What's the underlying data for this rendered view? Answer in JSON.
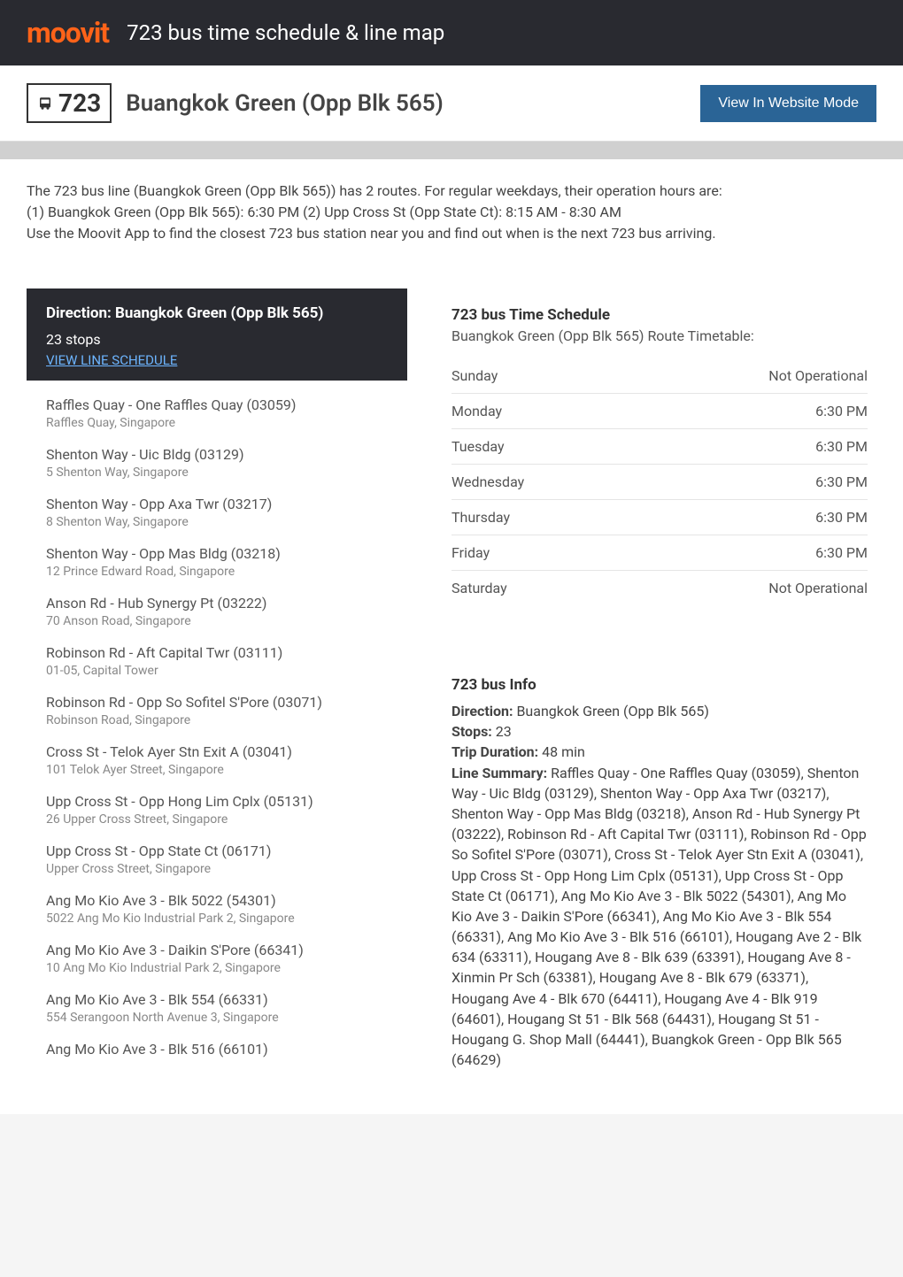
{
  "header": {
    "logo": "moovit",
    "logo_color": "#ff6319",
    "title": "723 bus time schedule & line map",
    "bg_color": "#292a30"
  },
  "subheader": {
    "route_number": "723",
    "route_name": "Buangkok Green (Opp Blk 565)",
    "website_btn": "View In Website Mode",
    "btn_bg": "#2a6496"
  },
  "intro": {
    "line1": "The 723 bus line (Buangkok Green (Opp Blk 565)) has 2 routes. For regular weekdays, their operation hours are:",
    "line2": "(1) Buangkok Green (Opp Blk 565): 6:30 PM (2) Upp Cross St (Opp State Ct): 8:15 AM - 8:30 AM",
    "line3": "Use the Moovit App to find the closest 723 bus station near you and find out when is the next 723 bus arriving."
  },
  "direction": {
    "title": "Direction: Buangkok Green (Opp Blk 565)",
    "stops_count": "23 stops",
    "schedule_link": "VIEW LINE SCHEDULE",
    "link_color": "#6db5ff",
    "bg_color": "#292a30"
  },
  "stops": [
    {
      "name": "Raffles Quay - One Raffles Quay (03059)",
      "address": "Raffles Quay, Singapore"
    },
    {
      "name": "Shenton Way - Uic Bldg (03129)",
      "address": "5 Shenton Way, Singapore"
    },
    {
      "name": "Shenton Way - Opp Axa Twr (03217)",
      "address": "8 Shenton Way, Singapore"
    },
    {
      "name": "Shenton Way - Opp Mas Bldg (03218)",
      "address": "12 Prince Edward Road, Singapore"
    },
    {
      "name": "Anson Rd - Hub Synergy Pt (03222)",
      "address": "70 Anson Road, Singapore"
    },
    {
      "name": "Robinson Rd - Aft Capital Twr (03111)",
      "address": "01-05, Capital Tower"
    },
    {
      "name": "Robinson Rd - Opp So Sofitel S'Pore (03071)",
      "address": "Robinson Road, Singapore"
    },
    {
      "name": "Cross St - Telok Ayer Stn Exit A (03041)",
      "address": "101 Telok Ayer Street, Singapore"
    },
    {
      "name": "Upp Cross St - Opp Hong Lim Cplx (05131)",
      "address": "26 Upper Cross Street, Singapore"
    },
    {
      "name": "Upp Cross St - Opp State Ct (06171)",
      "address": "Upper Cross Street, Singapore"
    },
    {
      "name": "Ang Mo Kio Ave 3 - Blk 5022 (54301)",
      "address": "5022 Ang Mo Kio Industrial Park 2, Singapore"
    },
    {
      "name": "Ang Mo Kio Ave 3 - Daikin S'Pore (66341)",
      "address": "10 Ang Mo Kio Industrial Park 2, Singapore"
    },
    {
      "name": "Ang Mo Kio Ave 3 - Blk 554 (66331)",
      "address": "554 Serangoon North Avenue 3, Singapore"
    },
    {
      "name": "Ang Mo Kio Ave 3 - Blk 516 (66101)",
      "address": ""
    }
  ],
  "schedule": {
    "title": "723 bus Time Schedule",
    "subtitle": "Buangkok Green (Opp Blk 565) Route Timetable:",
    "rows": [
      {
        "day": "Sunday",
        "time": "Not Operational"
      },
      {
        "day": "Monday",
        "time": "6:30 PM"
      },
      {
        "day": "Tuesday",
        "time": "6:30 PM"
      },
      {
        "day": "Wednesday",
        "time": "6:30 PM"
      },
      {
        "day": "Thursday",
        "time": "6:30 PM"
      },
      {
        "day": "Friday",
        "time": "6:30 PM"
      },
      {
        "day": "Saturday",
        "time": "Not Operational"
      }
    ]
  },
  "info": {
    "title": "723 bus Info",
    "direction_label": "Direction:",
    "direction_value": " Buangkok Green (Opp Blk 565)",
    "stops_label": "Stops:",
    "stops_value": " 23",
    "duration_label": "Trip Duration:",
    "duration_value": " 48 min",
    "summary_label": "Line Summary:",
    "summary_value": " Raffles Quay - One Raffles Quay (03059), Shenton Way - Uic Bldg (03129), Shenton Way - Opp Axa Twr (03217), Shenton Way - Opp Mas Bldg (03218), Anson Rd - Hub Synergy Pt (03222), Robinson Rd - Aft Capital Twr (03111), Robinson Rd - Opp So Sofitel S'Pore (03071), Cross St - Telok Ayer Stn Exit A (03041), Upp Cross St - Opp Hong Lim Cplx (05131), Upp Cross St - Opp State Ct (06171), Ang Mo Kio Ave 3 - Blk 5022 (54301), Ang Mo Kio Ave 3 - Daikin S'Pore (66341), Ang Mo Kio Ave 3 - Blk 554 (66331), Ang Mo Kio Ave 3 - Blk 516 (66101), Hougang Ave 2 - Blk 634 (63311), Hougang Ave 8 - Blk 639 (63391), Hougang Ave 8 - Xinmin Pr Sch (63381), Hougang Ave 8 - Blk 679 (63371), Hougang Ave 4 - Blk 670 (64411), Hougang Ave 4 - Blk 919 (64601), Hougang St 51 - Blk 568 (64431), Hougang St 51 - Hougang G. Shop Mall (64441), Buangkok Green - Opp Blk 565 (64629)"
  }
}
